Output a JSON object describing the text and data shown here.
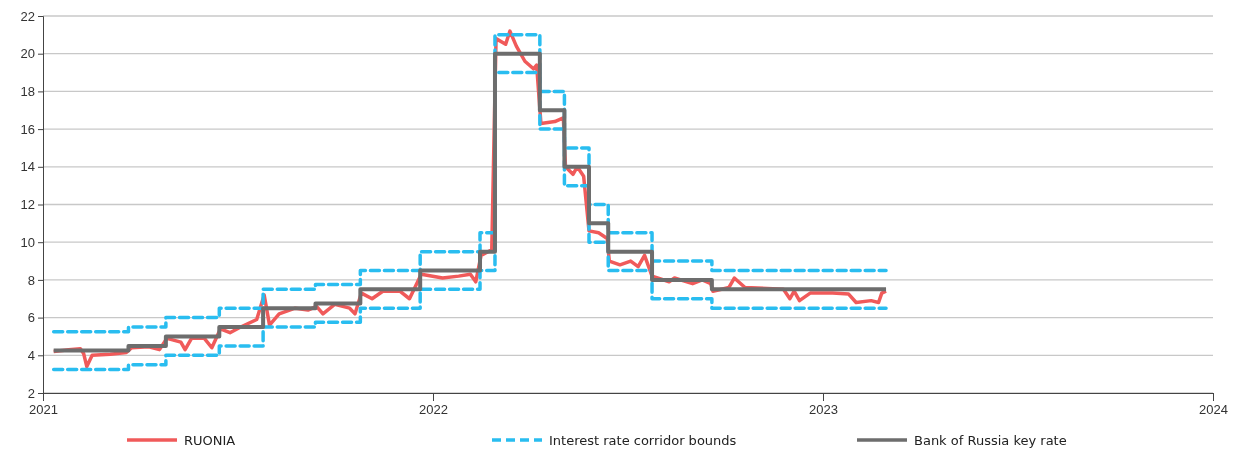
{
  "chart_data": {
    "type": "line",
    "xlim": [
      "2021-01-01",
      "2024-01-01"
    ],
    "xticks": [
      {
        "value": "2021-01-01",
        "label": "2021"
      },
      {
        "value": "2022-01-01",
        "label": "2022"
      },
      {
        "value": "2023-01-01",
        "label": "2023"
      },
      {
        "value": "2024-01-01",
        "label": "2024"
      }
    ],
    "ylim": [
      2,
      22
    ],
    "yticks": [
      2,
      4,
      6,
      8,
      10,
      12,
      14,
      16,
      18,
      20,
      22
    ],
    "grid": "y",
    "legend": "bottom",
    "marker": "none",
    "series": [
      {
        "name": "RUONIA",
        "color": "#f05a5a",
        "line_style": "solid",
        "x": [
          "2021-01-11",
          "2021-01-25",
          "2021-02-05",
          "2021-02-08",
          "2021-02-11",
          "2021-02-16",
          "2021-03-05",
          "2021-03-20",
          "2021-03-25",
          "2021-04-10",
          "2021-04-20",
          "2021-04-27",
          "2021-05-10",
          "2021-05-14",
          "2021-05-20",
          "2021-06-01",
          "2021-06-08",
          "2021-06-16",
          "2021-06-25",
          "2021-07-05",
          "2021-07-20",
          "2021-07-27",
          "2021-08-01",
          "2021-08-10",
          "2021-08-25",
          "2021-09-06",
          "2021-09-14",
          "2021-09-20",
          "2021-10-01",
          "2021-10-15",
          "2021-10-20",
          "2021-10-26",
          "2021-11-05",
          "2021-11-15",
          "2021-12-01",
          "2021-12-10",
          "2021-12-21",
          "2022-01-10",
          "2022-01-25",
          "2022-02-05",
          "2022-02-10",
          "2022-02-15",
          "2022-02-25",
          "2022-02-28",
          "2022-03-01",
          "2022-03-10",
          "2022-03-14",
          "2022-03-20",
          "2022-03-28",
          "2022-04-05",
          "2022-04-08",
          "2022-04-12",
          "2022-04-25",
          "2022-05-03",
          "2022-05-05",
          "2022-05-12",
          "2022-05-16",
          "2022-05-22",
          "2022-05-27",
          "2022-06-05",
          "2022-06-13",
          "2022-06-15",
          "2022-06-25",
          "2022-07-05",
          "2022-07-12",
          "2022-07-18",
          "2022-07-25",
          "2022-08-10",
          "2022-08-15",
          "2022-09-01",
          "2022-09-10",
          "2022-09-18",
          "2022-09-20",
          "2022-10-05",
          "2022-10-10",
          "2022-10-20",
          "2022-11-10",
          "2022-11-25",
          "2022-12-01",
          "2022-12-05",
          "2022-12-10",
          "2022-12-20",
          "2023-01-10",
          "2023-01-25",
          "2023-02-01",
          "2023-02-15",
          "2023-02-22",
          "2023-02-25",
          "2023-03-01"
        ],
        "values": [
          4.2,
          4.3,
          4.35,
          4.1,
          3.4,
          4.0,
          4.05,
          4.15,
          4.4,
          4.45,
          4.3,
          4.9,
          4.7,
          4.3,
          4.9,
          4.9,
          4.4,
          5.4,
          5.2,
          5.5,
          5.9,
          7.2,
          5.6,
          6.2,
          6.5,
          6.4,
          6.6,
          6.2,
          6.7,
          6.5,
          6.2,
          7.3,
          7.0,
          7.4,
          7.4,
          7.0,
          8.3,
          8.1,
          8.2,
          8.3,
          7.9,
          9.3,
          9.6,
          null,
          20.8,
          20.5,
          21.2,
          20.4,
          19.6,
          19.2,
          19.4,
          16.3,
          16.4,
          16.6,
          14.0,
          13.6,
          14.0,
          13.5,
          10.6,
          10.5,
          10.2,
          9.0,
          8.8,
          9.0,
          8.7,
          9.3,
          8.2,
          7.9,
          8.1,
          7.8,
          8.0,
          7.8,
          7.4,
          7.6,
          8.1,
          7.6,
          null,
          7.5,
          7.0,
          7.4,
          6.9,
          7.3,
          7.3,
          7.25,
          6.8,
          6.9,
          6.8,
          7.3,
          7.4
        ]
      },
      {
        "name": "Interest rate corridor bounds",
        "color": "#29bdf0",
        "type": "step",
        "line_style": "dashed",
        "x": [
          "2021-01-11",
          "2021-03-22",
          "2021-04-26",
          "2021-06-15",
          "2021-07-26",
          "2021-09-13",
          "2021-10-25",
          "2021-12-20",
          "2022-02-14",
          "2022-02-28",
          "2022-04-11",
          "2022-05-04",
          "2022-05-27",
          "2022-06-14",
          "2022-07-25",
          "2022-09-19",
          "2023-03-01"
        ],
        "values": [
          5.25,
          5.5,
          6,
          6.5,
          7.5,
          7.75,
          8.5,
          9.5,
          10.5,
          21,
          18,
          15,
          12,
          10.5,
          9,
          8.5,
          8.5
        ]
      },
      {
        "color": "#29bdf0",
        "type": "step",
        "line_style": "dashed",
        "x": [
          "2021-01-11",
          "2021-03-22",
          "2021-04-26",
          "2021-06-15",
          "2021-07-26",
          "2021-09-13",
          "2021-10-25",
          "2021-12-20",
          "2022-02-14",
          "2022-02-28",
          "2022-04-11",
          "2022-05-04",
          "2022-05-27",
          "2022-06-14",
          "2022-07-25",
          "2022-09-19",
          "2023-03-01"
        ],
        "values": [
          3.25,
          3.5,
          4,
          4.5,
          5.5,
          5.75,
          6.5,
          7.5,
          8.5,
          19,
          16,
          13,
          10,
          8.5,
          7,
          6.5,
          6.5
        ]
      },
      {
        "name": "Bank of Russia key rate",
        "color": "#6d6d6d",
        "type": "step",
        "line_style": "solid",
        "x": [
          "2021-01-11",
          "2021-03-22",
          "2021-04-26",
          "2021-06-15",
          "2021-07-26",
          "2021-09-13",
          "2021-10-25",
          "2021-12-20",
          "2022-02-14",
          "2022-02-28",
          "2022-04-11",
          "2022-05-04",
          "2022-05-27",
          "2022-06-14",
          "2022-07-25",
          "2022-09-19",
          "2023-03-01"
        ],
        "values": [
          4.25,
          4.5,
          5,
          5.5,
          6.5,
          6.75,
          7.5,
          8.5,
          9.5,
          20,
          17,
          14,
          11,
          9.5,
          8,
          7.5,
          7.5
        ]
      }
    ]
  }
}
